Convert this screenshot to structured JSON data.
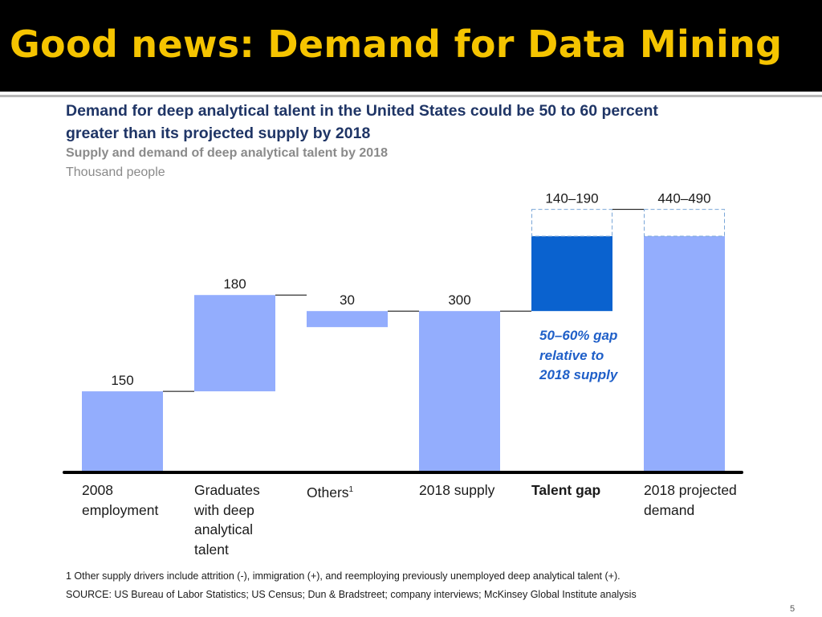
{
  "slide": {
    "title": "Good news: Demand for Data Mining",
    "page_number": "5"
  },
  "chart_data": {
    "type": "bar",
    "variant": "waterfall",
    "title": "Demand for deep analytical talent in the United States could be 50 to 60 percent greater than its projected supply by 2018",
    "subtitle": "Supply and demand of deep analytical talent by 2018",
    "unit": "Thousand people",
    "categories": [
      "2008 employment",
      "Graduates with deep analytical talent",
      "Others¹",
      "2018 supply",
      "Talent gap",
      "2018 projected demand"
    ],
    "category_lines": [
      [
        "2008",
        "employment"
      ],
      [
        "Graduates",
        "with deep",
        "analytical",
        "talent"
      ],
      [
        "Others"
      ],
      [
        "2018 supply"
      ],
      [
        "Talent gap"
      ],
      [
        "2018 projected",
        "demand"
      ]
    ],
    "bars": [
      {
        "label": "150",
        "base": 0,
        "low": 150,
        "high": 150,
        "kind": "total"
      },
      {
        "label": "180",
        "base": 150,
        "low": 180,
        "high": 180,
        "kind": "increase"
      },
      {
        "label": "30",
        "base": 300,
        "low": -30,
        "high": -30,
        "kind": "decrease"
      },
      {
        "label": "300",
        "base": 0,
        "low": 300,
        "high": 300,
        "kind": "total"
      },
      {
        "label": "140–190",
        "base": 300,
        "low": 140,
        "high": 190,
        "kind": "gap"
      },
      {
        "label": "440–490",
        "base": 0,
        "low": 440,
        "high": 490,
        "kind": "total"
      }
    ],
    "annotation": [
      "50–60% gap",
      "relative to",
      "2018 supply"
    ],
    "footnote": "1  Other supply drivers include attrition (-), immigration (+), and reemploying previously unemployed deep analytical talent (+).",
    "source": "SOURCE: US Bureau of Labor Statistics; US Census; Dun & Bradstreet; company interviews; McKinsey Global Institute analysis",
    "ylim": [
      0,
      490
    ],
    "grid": false,
    "legend": "none",
    "colors": {
      "bar": "#93adfd",
      "gap": "#0a62cf",
      "range_outline": "#7aa6d8",
      "axis": "#000000",
      "connector": "#000000"
    }
  }
}
